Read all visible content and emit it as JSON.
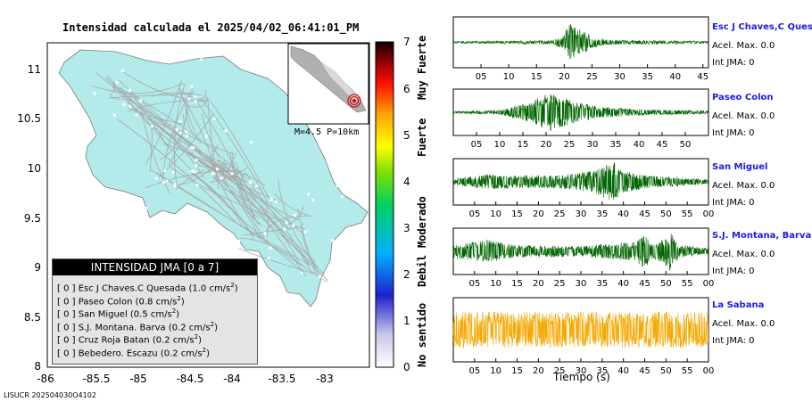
{
  "map": {
    "title": "Intensidad calculada el 2025/04/02_06:41:01_PM",
    "lon_ticks": [
      "-86",
      "-85.5",
      "-85",
      "-84.5",
      "-84",
      "-83.5",
      "-83"
    ],
    "lat_ticks": [
      "11",
      "10.5",
      "10",
      "9.5",
      "9",
      "8.5",
      "8"
    ],
    "inset_caption": "M=4.5 P=10km",
    "footer": "LISUCR 202504030O4102",
    "colors": {
      "land": "#b3ebeb",
      "roads": "#a8a8a8",
      "cities": "#ffffff",
      "epicenter": "#d01010"
    }
  },
  "intensity_scale": {
    "ticks": [
      "0",
      "1",
      "2",
      "3",
      "4",
      "5",
      "6",
      "7"
    ],
    "labels": [
      "No sentido",
      "Debil",
      "Moderado",
      "Fuerte",
      "Muy Fuerte"
    ]
  },
  "legend": {
    "title": "INTENSIDAD JMA [0 a 7]",
    "rows": [
      {
        "prefix": "[ 0 ]  Esc J Chaves.C Quesada (1.0 cm/s",
        "sup": "2",
        "suffix": ")"
      },
      {
        "prefix": "[ 0 ]  Paseo Colon (0.8 cm/s",
        "sup": "2",
        "suffix": ")"
      },
      {
        "prefix": "[ 0 ]  San Miguel (0.5 cm/s",
        "sup": "2",
        "suffix": ")"
      },
      {
        "prefix": "[ 0 ]  S.J. Montana. Barva (0.2 cm/s",
        "sup": "2",
        "suffix": ")"
      },
      {
        "prefix": "[ 0 ]  Cruz Roja Batan (0.2 cm/s",
        "sup": "2",
        "suffix": ")"
      },
      {
        "prefix": "[ 0 ]  Bebedero. Escazu (0.2 cm/s",
        "sup": "2",
        "suffix": ")"
      }
    ]
  },
  "chart_data": {
    "type": "line",
    "xlabel": "Tiempo (s)",
    "series": [
      {
        "name": "Esc J Chaves,C Quesada",
        "accel": "Acel. Max. 0.0",
        "int": "Int JMA: 0",
        "x_ticks": [
          "05",
          "10",
          "15",
          "20",
          "25",
          "30",
          "35",
          "40",
          "45"
        ],
        "xmax": 46,
        "color": "#006400",
        "envelope": [
          [
            0,
            0.04
          ],
          [
            18,
            0.08
          ],
          [
            20,
            0.35
          ],
          [
            21,
            0.9
          ],
          [
            22.5,
            0.6
          ],
          [
            25,
            0.25
          ],
          [
            28,
            0.1
          ],
          [
            46,
            0.05
          ]
        ]
      },
      {
        "name": "Paseo Colon",
        "accel": "Acel. Max. 0.0",
        "int": "Int JMA: 0",
        "x_ticks": [
          "05",
          "10",
          "15",
          "20",
          "25",
          "30",
          "35",
          "40",
          "45",
          "50"
        ],
        "xmax": 55,
        "color": "#006400",
        "envelope": [
          [
            0,
            0.05
          ],
          [
            10,
            0.1
          ],
          [
            16,
            0.45
          ],
          [
            19,
            0.75
          ],
          [
            21,
            0.95
          ],
          [
            23,
            0.7
          ],
          [
            27,
            0.45
          ],
          [
            32,
            0.25
          ],
          [
            40,
            0.15
          ],
          [
            55,
            0.08
          ]
        ]
      },
      {
        "name": "San Miguel",
        "accel": "Acel. Max. 0.0",
        "int": "Int JMA: 0",
        "x_ticks": [
          "05",
          "10",
          "15",
          "20",
          "25",
          "30",
          "35",
          "40",
          "45",
          "50",
          "55",
          "00"
        ],
        "xmax": 60,
        "color": "#006400",
        "envelope": [
          [
            0,
            0.15
          ],
          [
            8,
            0.35
          ],
          [
            14,
            0.3
          ],
          [
            25,
            0.3
          ],
          [
            32,
            0.5
          ],
          [
            36,
            0.8
          ],
          [
            38,
            0.95
          ],
          [
            40,
            0.5
          ],
          [
            46,
            0.3
          ],
          [
            60,
            0.12
          ]
        ]
      },
      {
        "name": "S.J. Montana, Barva",
        "accel": "Acel. Max. 0.0",
        "int": "Int JMA: 0",
        "x_ticks": [
          "05",
          "10",
          "15",
          "20",
          "25",
          "30",
          "35",
          "40",
          "45",
          "50",
          "55",
          "00"
        ],
        "xmax": 60,
        "color": "#006400",
        "envelope": [
          [
            0,
            0.3
          ],
          [
            8,
            0.55
          ],
          [
            14,
            0.3
          ],
          [
            30,
            0.25
          ],
          [
            43,
            0.45
          ],
          [
            45,
            0.9
          ],
          [
            47,
            0.3
          ],
          [
            51,
            0.95
          ],
          [
            53,
            0.3
          ],
          [
            60,
            0.15
          ]
        ]
      },
      {
        "name": "La Sabana",
        "accel": "Acel. Max. 0.0",
        "int": "Int JMA: 0",
        "x_ticks": [
          "05",
          "10",
          "15",
          "20",
          "25",
          "30",
          "35",
          "40",
          "45",
          "50",
          "55",
          "00"
        ],
        "xmax": 60,
        "color": "#f4a800",
        "envelope": [
          [
            0,
            0.6
          ],
          [
            60,
            0.6
          ]
        ]
      }
    ]
  }
}
